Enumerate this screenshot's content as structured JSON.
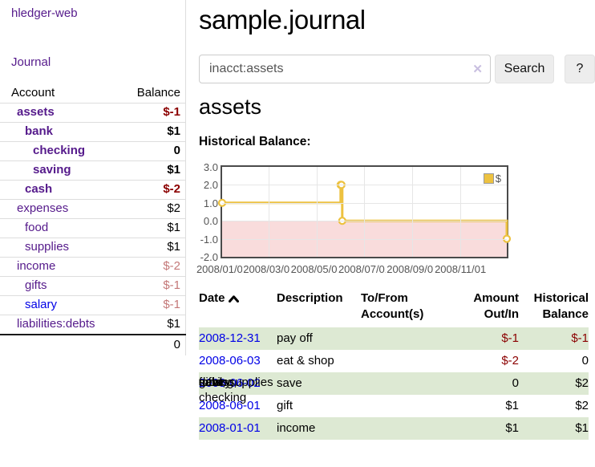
{
  "app_title": "hledger-web",
  "sidebar": {
    "journal_link": "Journal",
    "accounts": {
      "header_account": "Account",
      "header_balance": "Balance",
      "rows": [
        {
          "name": "assets",
          "balance": "$-1"
        },
        {
          "name": "bank",
          "balance": "$1"
        },
        {
          "name": "checking",
          "balance": "0"
        },
        {
          "name": "saving",
          "balance": "$1"
        },
        {
          "name": "cash",
          "balance": "$-2"
        },
        {
          "name": "expenses",
          "balance": "$2"
        },
        {
          "name": "food",
          "balance": "$1"
        },
        {
          "name": "supplies",
          "balance": "$1"
        },
        {
          "name": "income",
          "balance": "$-2"
        },
        {
          "name": "gifts",
          "balance": "$-1"
        },
        {
          "name": "salary",
          "balance": "$-1"
        },
        {
          "name": "liabilities:debts",
          "balance": "$1"
        }
      ],
      "total": "0"
    }
  },
  "main": {
    "title": "sample.journal",
    "search": {
      "value": "inacct:assets",
      "clear_icon": "✕",
      "search_button": "Search",
      "help_button": "?"
    },
    "account_heading": "assets",
    "section_label": "Historical Balance:",
    "register": {
      "headers": {
        "date": "Date",
        "description": "Description",
        "accounts": "To/From Account(s)",
        "amount": "Amount Out/In",
        "balance": "Historical Balance"
      },
      "rows": [
        {
          "date": "2008-12-31",
          "description": "pay off",
          "accounts": "debts",
          "amount": "$-1",
          "balance": "$-1"
        },
        {
          "date": "2008-06-03",
          "description": "eat & shop",
          "accounts": "food, supplies",
          "amount": "$-2",
          "balance": "0"
        },
        {
          "date": "2008-06-02",
          "description": "save",
          "accounts": "saving,\nchecking",
          "amount": "0",
          "balance": "$2"
        },
        {
          "date": "2008-06-01",
          "description": "gift",
          "accounts": "gifts",
          "amount": "$1",
          "balance": "$2"
        },
        {
          "date": "2008-01-01",
          "description": "income",
          "accounts": "salary",
          "amount": "$1",
          "balance": "$1"
        }
      ]
    }
  },
  "chart_data": {
    "type": "line",
    "title": "Historical Balance:",
    "step": true,
    "series": [
      {
        "name": "$",
        "color": "#edc240",
        "points": [
          [
            "2008-01-01",
            1
          ],
          [
            "2008-06-01",
            2
          ],
          [
            "2008-06-02",
            2
          ],
          [
            "2008-06-03",
            0
          ],
          [
            "2008-12-31",
            -1
          ]
        ]
      }
    ],
    "xlim": [
      "2008-01-01",
      "2008-12-31"
    ],
    "ylim": [
      -2,
      3
    ],
    "yticks": [
      3,
      2,
      1,
      0,
      -1,
      -2
    ],
    "ytick_labels": [
      "3.0",
      "2.0",
      "1.0",
      "0.0",
      "-1.0",
      "-2.0"
    ],
    "xticks": [
      "2008-01-01",
      "2008-03-01",
      "2008-05-01",
      "2008-07-01",
      "2008-09-01",
      "2008-11-01"
    ],
    "xtick_labels": [
      "2008/01/01",
      "2008/03/01",
      "2008/05/01",
      "2008/07/01",
      "2008/09/01",
      "2008/11/01"
    ],
    "legend_position": "top-right",
    "grid": true,
    "negative_region_color": "#f9dcdc",
    "zero_line_color": "#8b0000"
  }
}
